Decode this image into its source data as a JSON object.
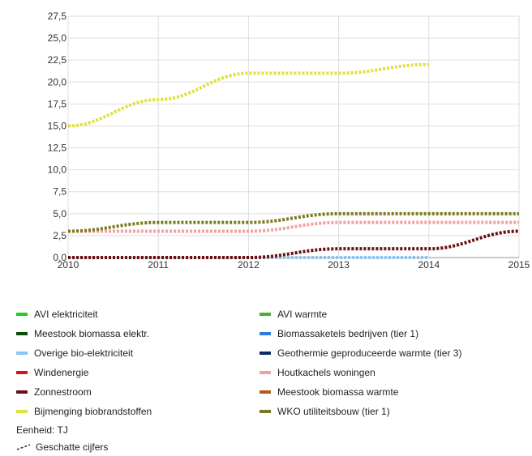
{
  "chart_data": {
    "type": "line",
    "x": [
      "2010",
      "2011",
      "2012",
      "2013",
      "2014",
      "2015"
    ],
    "y_ticks": [
      "0,0",
      "2,5",
      "5,0",
      "7,5",
      "10,0",
      "12,5",
      "15,0",
      "17,5",
      "20,0",
      "22,5",
      "25,0",
      "27,5"
    ],
    "ylim": [
      0,
      27.5
    ],
    "grid": true,
    "series": [
      {
        "name": "AVI elektriciteit",
        "color": "#22cc22",
        "values": [
          null,
          null,
          null,
          null,
          null,
          null
        ]
      },
      {
        "name": "AVI warmte",
        "color": "#4caf30",
        "values": [
          null,
          null,
          null,
          null,
          null,
          null
        ]
      },
      {
        "name": "Meestook biomassa elektr.",
        "color": "#0b4d0b",
        "values": [
          null,
          null,
          null,
          null,
          null,
          null
        ]
      },
      {
        "name": "Biomassaketels bedrijven (tier 1)",
        "color": "#2b7de0",
        "values": [
          null,
          null,
          null,
          null,
          null,
          null
        ]
      },
      {
        "name": "Overige bio-elektriciteit",
        "color": "#8cc4f0",
        "values": [
          0,
          0,
          0,
          0,
          0,
          null
        ]
      },
      {
        "name": "Geothermie geproduceerde warmte (tier 3)",
        "color": "#0a2a66",
        "values": [
          null,
          null,
          null,
          null,
          null,
          null
        ]
      },
      {
        "name": "Windenergie",
        "color": "#dd1111",
        "values": [
          null,
          null,
          null,
          null,
          null,
          null
        ]
      },
      {
        "name": "Houtkachels woningen",
        "color": "#f4a0a0",
        "values": [
          3,
          3,
          3,
          4,
          4,
          4
        ]
      },
      {
        "name": "Zonnestroom",
        "color": "#6b0f0f",
        "values": [
          0,
          0,
          0,
          1,
          1,
          3
        ]
      },
      {
        "name": "Meestook biomassa warmte",
        "color": "#b25a1a",
        "values": [
          null,
          null,
          null,
          null,
          null,
          null
        ]
      },
      {
        "name": "Bijmenging biobrandstoffen",
        "color": "#e0e040",
        "values": [
          15,
          18,
          21,
          21,
          22,
          null
        ]
      },
      {
        "name": "WKO utiliteitsbouw (tier 1)",
        "color": "#7a7a20",
        "values": [
          3,
          4,
          4,
          5,
          5,
          5
        ]
      }
    ]
  },
  "legend": {
    "left": [
      {
        "label": "AVI elektriciteit",
        "color": "#22cc22"
      },
      {
        "label": "Meestook biomassa elektr.",
        "color": "#0b4d0b"
      },
      {
        "label": "Overige bio-elektriciteit",
        "color": "#8cc4f0"
      },
      {
        "label": "Windenergie",
        "color": "#dd1111"
      },
      {
        "label": "Zonnestroom",
        "color": "#6b0f0f"
      },
      {
        "label": "Bijmenging biobrandstoffen",
        "color": "#e0e040"
      }
    ],
    "right": [
      {
        "label": "AVI warmte",
        "color": "#4caf30"
      },
      {
        "label": "Biomassaketels bedrijven (tier 1)",
        "color": "#2b7de0"
      },
      {
        "label": "Geothermie geproduceerde warmte (tier 3)",
        "color": "#0a2a66"
      },
      {
        "label": "Houtkachels woningen",
        "color": "#f4a0a0"
      },
      {
        "label": "Meestook biomassa warmte",
        "color": "#b25a1a"
      },
      {
        "label": "WKO utiliteitsbouw (tier 1)",
        "color": "#7a7a20"
      }
    ]
  },
  "unit_text": "Eenheid: TJ",
  "estimated_text": "Geschatte cijfers"
}
